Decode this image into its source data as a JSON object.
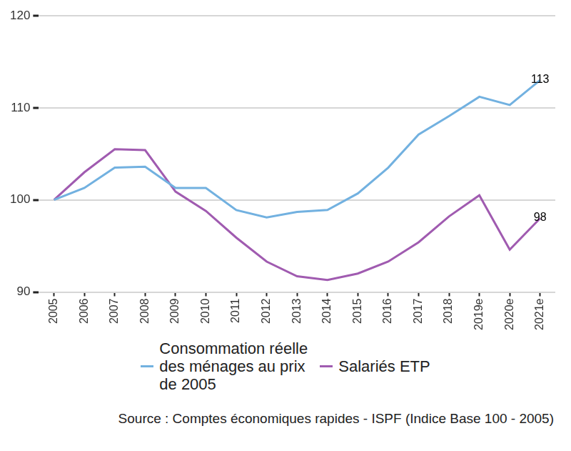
{
  "chart_data": {
    "type": "line",
    "caption": "Source : Comptes économiques rapides - ISPF (Indice Base 100 - 2005)",
    "categories": [
      "2005",
      "2006",
      "2007",
      "2008",
      "2009",
      "2010",
      "2011",
      "2012",
      "2013",
      "2014",
      "2015",
      "2016",
      "2017",
      "2018",
      "2019e",
      "2020e",
      "2021e"
    ],
    "series": [
      {
        "name": "Consommation réelle des ménages au prix de 2005",
        "color": "#72b1e0",
        "values": [
          100,
          101.3,
          103.5,
          103.6,
          101.3,
          101.3,
          98.9,
          98.1,
          98.7,
          98.9,
          100.7,
          103.5,
          107.1,
          109.1,
          111.2,
          110.3,
          113
        ],
        "value_labels": [
          null,
          null,
          null,
          null,
          null,
          null,
          null,
          null,
          null,
          null,
          null,
          null,
          null,
          null,
          null,
          null,
          "113"
        ]
      },
      {
        "name": "Salariés ETP",
        "color": "#a05bb0",
        "values": [
          100,
          103.0,
          105.5,
          105.4,
          100.9,
          98.8,
          95.9,
          93.3,
          91.7,
          91.3,
          92.0,
          93.3,
          95.4,
          98.2,
          100.5,
          94.6,
          98
        ],
        "value_labels": [
          null,
          null,
          null,
          null,
          null,
          null,
          null,
          null,
          null,
          null,
          null,
          null,
          null,
          null,
          null,
          null,
          "98"
        ]
      }
    ],
    "ylim": [
      90,
      120
    ],
    "yticks": [
      90,
      100,
      110,
      120
    ],
    "grid": true,
    "legend": "bottom",
    "data_labels": true
  }
}
